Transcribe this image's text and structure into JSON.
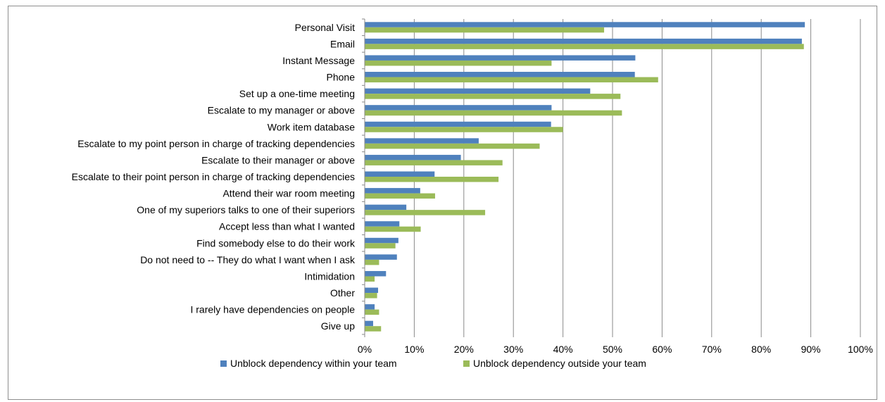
{
  "chart_data": {
    "type": "bar",
    "orientation": "horizontal",
    "categories": [
      "Personal Visit",
      "Email",
      "Instant Message",
      "Phone",
      "Set up a one-time meeting",
      "Escalate to my manager or above",
      "Work item database",
      "Escalate to my point person in charge of tracking dependencies",
      "Escalate to their manager or above",
      "Escalate to their point person in charge of tracking dependencies",
      "Attend their war room meeting",
      "One of my superiors talks to one of their superiors",
      "Accept less than what I wanted",
      "Find somebody else to do their work",
      "Do not need to -- They do what I want when I ask",
      "Intimidation",
      "Other",
      "I rarely have dependencies on people",
      "Give up"
    ],
    "series": [
      {
        "name": "Unblock dependency within your team",
        "color": "#4f81bd",
        "values": [
          0.888,
          0.882,
          0.546,
          0.545,
          0.455,
          0.377,
          0.376,
          0.23,
          0.194,
          0.141,
          0.112,
          0.084,
          0.07,
          0.068,
          0.065,
          0.043,
          0.027,
          0.02,
          0.017
        ]
      },
      {
        "name": "Unblock dependency outside your team",
        "color": "#9bbb59",
        "values": [
          0.483,
          0.886,
          0.377,
          0.592,
          0.516,
          0.519,
          0.4,
          0.353,
          0.278,
          0.27,
          0.142,
          0.243,
          0.113,
          0.062,
          0.029,
          0.02,
          0.025,
          0.029,
          0.033
        ]
      }
    ],
    "xlim": [
      0,
      1
    ],
    "xticks": [
      "0%",
      "10%",
      "20%",
      "30%",
      "40%",
      "50%",
      "60%",
      "70%",
      "80%",
      "90%",
      "100%"
    ],
    "grid": "vertical",
    "legend_position": "bottom",
    "title": "",
    "xlabel": "",
    "ylabel": ""
  }
}
